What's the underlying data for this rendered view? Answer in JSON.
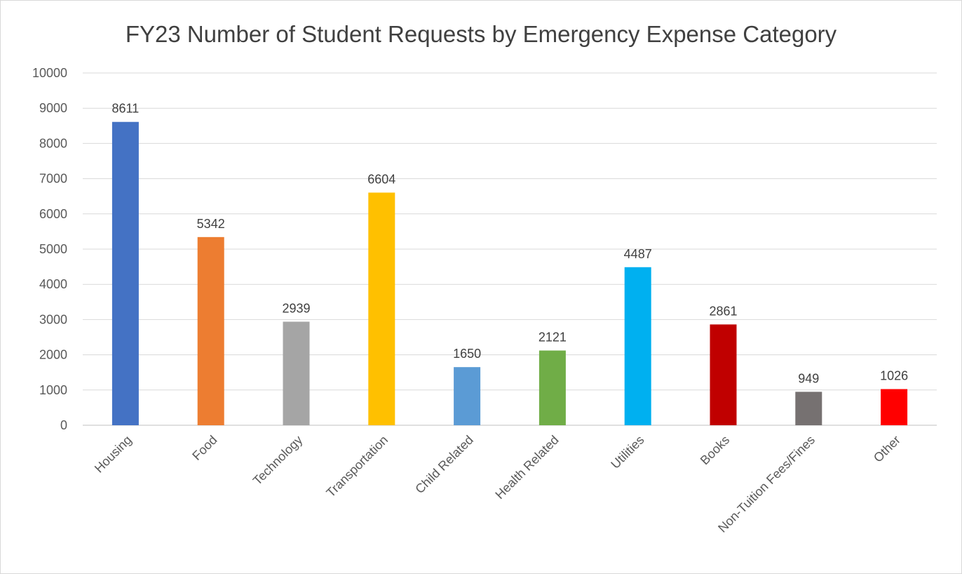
{
  "chart_data": {
    "type": "bar",
    "title": "FY23 Number of Student Requests by Emergency Expense Category",
    "xlabel": "",
    "ylabel": "",
    "ylim": [
      0,
      10000
    ],
    "yticks": [
      "0",
      "1000",
      "2000",
      "3000",
      "4000",
      "5000",
      "6000",
      "7000",
      "8000",
      "9000",
      "10000"
    ],
    "grid": true,
    "legend": "none",
    "categories": [
      "Housing",
      "Food",
      "Technology",
      "Transportation",
      "Child Related",
      "Health Related",
      "Utilities",
      "Books",
      "Non-Tuition Fees/Fines",
      "Other"
    ],
    "values": [
      8611,
      5342,
      2939,
      6604,
      1650,
      2121,
      4487,
      2861,
      949,
      1026
    ],
    "colors": [
      "#4472C4",
      "#ED7D31",
      "#A5A5A5",
      "#FFC000",
      "#5B9BD5",
      "#70AD47",
      "#00B0F0",
      "#C00000",
      "#767171",
      "#FF0000"
    ]
  }
}
